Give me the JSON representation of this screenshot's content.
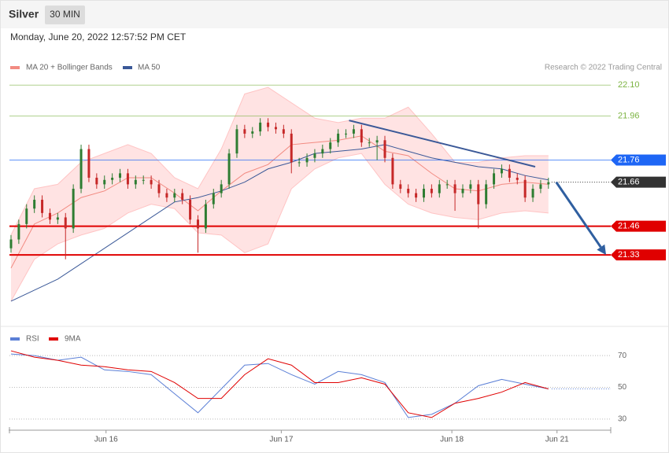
{
  "chart_data": {
    "type": "candlestick",
    "title": "Silver",
    "interval": "30 MIN",
    "subtitle": "Monday, June 20, 2022 12:57:52 PM CET",
    "credit": "Research © 2022 Trading Central",
    "xlim": [
      -0.2,
      77
    ],
    "xticks": [
      {
        "value": 12.2,
        "label": "Jun 16"
      },
      {
        "value": 34.7,
        "label": "Jun 17"
      },
      {
        "value": 56.6,
        "label": "Jun 18"
      },
      {
        "value": 70.1,
        "label": "Jun 21"
      }
    ],
    "ylim": [
      21.02,
      22.24
    ],
    "up_color": "#2e7d32",
    "down_color": "#c62828",
    "candles": {
      "open": [
        21.36,
        21.4,
        21.47,
        21.54,
        21.58,
        21.52,
        21.49,
        21.5,
        21.45,
        21.63,
        21.81,
        21.68,
        21.65,
        21.67,
        21.68,
        21.7,
        21.65,
        21.67,
        21.67,
        21.65,
        21.61,
        21.59,
        21.61,
        21.58,
        21.49,
        21.45,
        21.56,
        21.61,
        21.65,
        21.79,
        21.9,
        21.88,
        21.89,
        21.93,
        21.91,
        21.9,
        21.88,
        21.75,
        21.75,
        21.77,
        21.79,
        21.81,
        21.84,
        21.88,
        21.88,
        21.9,
        21.84,
        21.84,
        21.85,
        21.77,
        21.65,
        21.63,
        21.61,
        21.59,
        21.63,
        21.61,
        21.65,
        21.65,
        21.61,
        21.63,
        21.65,
        21.56,
        21.65,
        21.7,
        21.72,
        21.68,
        21.67,
        21.59,
        21.63,
        21.65
      ],
      "high": [
        21.42,
        21.49,
        21.56,
        21.6,
        21.6,
        21.54,
        21.52,
        21.52,
        21.65,
        21.83,
        21.83,
        21.7,
        21.69,
        21.7,
        21.72,
        21.72,
        21.69,
        21.69,
        21.69,
        21.67,
        21.63,
        21.63,
        21.63,
        21.6,
        21.51,
        21.58,
        21.63,
        21.67,
        21.81,
        21.92,
        21.92,
        21.91,
        21.95,
        21.95,
        21.93,
        21.92,
        21.9,
        21.77,
        21.79,
        21.81,
        21.83,
        21.86,
        21.9,
        21.9,
        21.92,
        21.92,
        21.86,
        21.87,
        21.87,
        21.79,
        21.67,
        21.65,
        21.63,
        21.65,
        21.65,
        21.67,
        21.67,
        21.67,
        21.65,
        21.67,
        21.67,
        21.67,
        21.72,
        21.74,
        21.74,
        21.7,
        21.69,
        21.65,
        21.67,
        21.68
      ],
      "low": [
        21.34,
        21.38,
        21.45,
        21.52,
        21.5,
        21.47,
        21.47,
        21.31,
        21.43,
        21.61,
        21.66,
        21.63,
        21.63,
        21.65,
        21.66,
        21.63,
        21.63,
        21.65,
        21.63,
        21.59,
        21.57,
        21.57,
        21.56,
        21.47,
        21.34,
        21.43,
        21.54,
        21.59,
        21.63,
        21.77,
        21.86,
        21.86,
        21.87,
        21.89,
        21.88,
        21.86,
        21.7,
        21.73,
        21.73,
        21.75,
        21.77,
        21.79,
        21.82,
        21.86,
        21.86,
        21.82,
        21.82,
        21.76,
        21.75,
        21.63,
        21.61,
        21.59,
        21.57,
        21.57,
        21.59,
        21.59,
        21.63,
        21.53,
        21.59,
        21.61,
        21.45,
        21.54,
        21.63,
        21.68,
        21.66,
        21.65,
        21.57,
        21.57,
        21.61,
        21.63
      ],
      "close": [
        21.4,
        21.47,
        21.54,
        21.58,
        21.52,
        21.49,
        21.5,
        21.45,
        21.63,
        21.81,
        21.68,
        21.65,
        21.67,
        21.68,
        21.7,
        21.65,
        21.67,
        21.67,
        21.65,
        21.61,
        21.59,
        21.61,
        21.58,
        21.49,
        21.45,
        21.56,
        21.61,
        21.65,
        21.79,
        21.9,
        21.88,
        21.89,
        21.93,
        21.91,
        21.9,
        21.88,
        21.75,
        21.75,
        21.77,
        21.79,
        21.81,
        21.84,
        21.88,
        21.88,
        21.9,
        21.84,
        21.84,
        21.85,
        21.77,
        21.65,
        21.63,
        21.61,
        21.59,
        21.63,
        21.61,
        21.65,
        21.65,
        21.61,
        21.63,
        21.65,
        21.56,
        21.65,
        21.7,
        21.72,
        21.68,
        21.67,
        21.59,
        21.63,
        21.65,
        21.66
      ]
    },
    "indicator_x": [
      0,
      3,
      6,
      9,
      12,
      15,
      18,
      21,
      24,
      27,
      30,
      33,
      36,
      39,
      42,
      45,
      48,
      51,
      54,
      57,
      60,
      63,
      66,
      69
    ],
    "series": [
      {
        "name": "MA 20 + Bollinger Bands",
        "color": "#f28b82",
        "band_color": "#ffdcdc",
        "upper": [
          21.42,
          21.63,
          21.65,
          21.75,
          21.79,
          21.83,
          21.79,
          21.68,
          21.63,
          21.81,
          22.06,
          22.09,
          22.02,
          21.95,
          21.93,
          21.95,
          21.95,
          22.0,
          21.88,
          21.75,
          21.75,
          21.77,
          21.78,
          21.78
        ],
        "values": [
          21.27,
          21.47,
          21.52,
          21.59,
          21.62,
          21.68,
          21.68,
          21.61,
          21.53,
          21.62,
          21.7,
          21.74,
          21.83,
          21.84,
          21.85,
          21.87,
          21.8,
          21.78,
          21.7,
          21.63,
          21.62,
          21.65,
          21.66,
          21.65
        ],
        "lower": [
          21.12,
          21.31,
          21.38,
          21.42,
          21.45,
          21.52,
          21.56,
          21.54,
          21.43,
          21.42,
          21.34,
          21.38,
          21.63,
          21.72,
          21.77,
          21.79,
          21.65,
          21.56,
          21.52,
          21.5,
          21.49,
          21.52,
          21.53,
          21.52
        ]
      },
      {
        "name": "MA 50",
        "color": "#3b5998",
        "values": [
          21.12,
          21.17,
          21.22,
          21.29,
          21.36,
          21.43,
          21.5,
          21.57,
          21.59,
          21.62,
          21.66,
          21.72,
          21.75,
          21.79,
          21.8,
          21.81,
          21.83,
          21.8,
          21.77,
          21.75,
          21.73,
          21.72,
          21.69,
          21.67
        ]
      }
    ],
    "levels": [
      {
        "value": 22.1,
        "label": "22.10",
        "color": "#7cb342",
        "marker": "text",
        "style": "thin"
      },
      {
        "value": 21.96,
        "color": "#7cb342",
        "marker": "text",
        "style": "thin"
      },
      {
        "value": 21.76,
        "color": "#1e66f5",
        "marker": "box",
        "style": "thin"
      },
      {
        "value": 21.66,
        "color": "#333333",
        "marker": "box",
        "style": "dotted"
      },
      {
        "value": 21.46,
        "color": "#e00000",
        "marker": "box",
        "style": "thick"
      },
      {
        "value": 21.33,
        "color": "#e00000",
        "marker": "box",
        "style": "thick"
      }
    ],
    "trendline": {
      "x": [
        43.4,
        67.3
      ],
      "y": [
        21.94,
        21.73
      ],
      "color": "#3b5998"
    },
    "arrow": {
      "x": [
        70,
        76.4
      ],
      "y": [
        21.66,
        21.33
      ],
      "color": "#2f5fa0"
    },
    "rsi_panel": {
      "type": "line",
      "ylim": [
        25,
        76
      ],
      "yticks": [
        70,
        50,
        30
      ],
      "series": [
        {
          "name": "RSI",
          "color": "#5b7fd6",
          "values": [
            71,
            70,
            67,
            69,
            61,
            60,
            58,
            46,
            34,
            49,
            64,
            65,
            58,
            52,
            60,
            58,
            53,
            31,
            33,
            40,
            51,
            55,
            52,
            49
          ]
        },
        {
          "name": "9MA",
          "color": "#e00000",
          "values": [
            73,
            69,
            67,
            64,
            63,
            61,
            60,
            53,
            43,
            43,
            58,
            68,
            64,
            53,
            53,
            56,
            52,
            34,
            31,
            40,
            43,
            47,
            53,
            49
          ]
        }
      ]
    }
  }
}
